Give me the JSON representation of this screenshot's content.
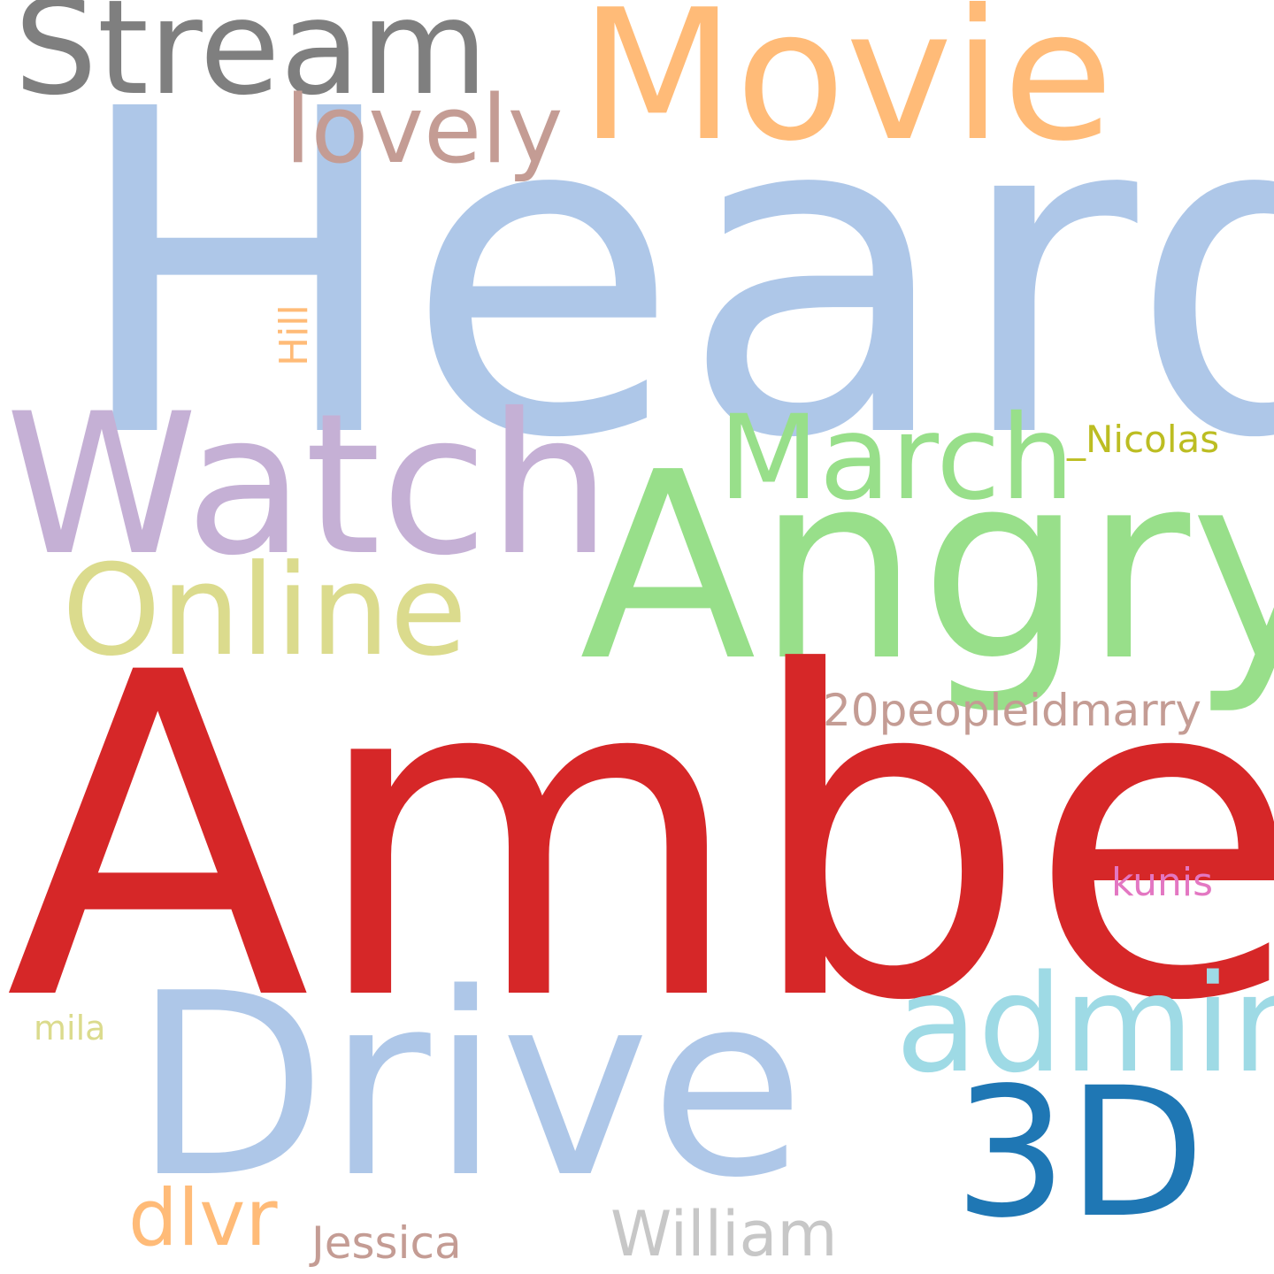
{
  "words": {
    "heard": {
      "text": "Heard",
      "color": "#aec7e8"
    },
    "amber": {
      "text": "Amber",
      "color": "#d62728"
    },
    "angry": {
      "text": "Angry",
      "color": "#98df8a"
    },
    "drive": {
      "text": "Drive",
      "color": "#aec7e8"
    },
    "watch": {
      "text": "Watch",
      "color": "#c5b0d5"
    },
    "movie": {
      "text": "Movie",
      "color": "#ffbb78"
    },
    "stream": {
      "text": "Stream",
      "color": "#7f7f7f"
    },
    "online": {
      "text": "Online",
      "color": "#dbdb8d"
    },
    "march": {
      "text": "March",
      "color": "#98df8a"
    },
    "3d": {
      "text": "3D",
      "color": "#1f77b4"
    },
    "admin": {
      "text": "admin",
      "color": "#9edae5"
    },
    "lovely": {
      "text": "lovely",
      "color": "#c49c94"
    },
    "20peopleidmarry": {
      "text": "20peopleidmarry",
      "color": "#c49c94"
    },
    "dlvr": {
      "text": "dlvr",
      "color": "#ffbb78"
    },
    "william": {
      "text": "William",
      "color": "#c7c7c7"
    },
    "nicolas": {
      "text": "_Nicolas",
      "color": "#bcbd22"
    },
    "hill": {
      "text": "Hill",
      "color": "#ffbb78"
    },
    "jessica": {
      "text": "Jessica",
      "color": "#c49c94"
    },
    "kunis": {
      "text": "kunis",
      "color": "#e377c2"
    },
    "mila": {
      "text": "mila",
      "color": "#dbdb8d"
    }
  }
}
